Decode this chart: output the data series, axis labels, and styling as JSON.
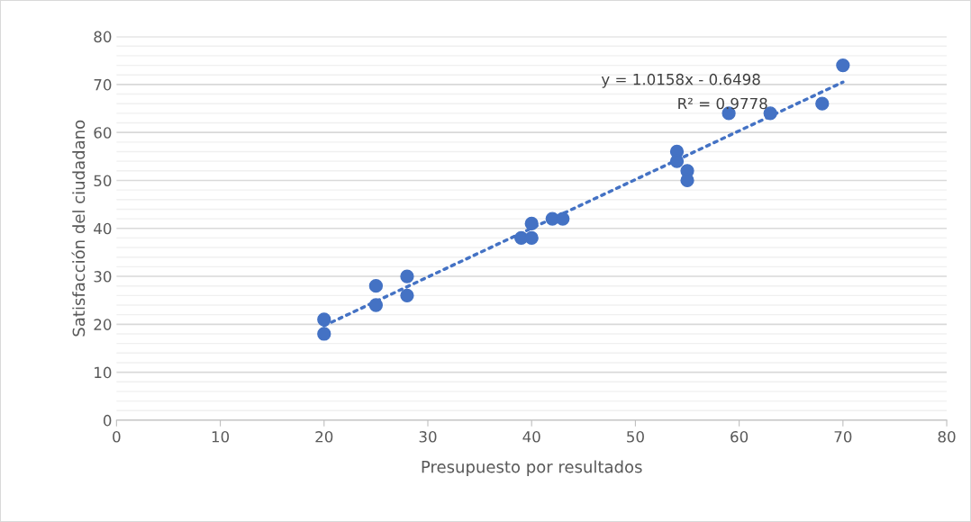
{
  "chart_data": {
    "type": "scatter",
    "xlabel": "Presupuesto por resultados",
    "ylabel": "Satisfacción del ciudadano",
    "xlim": [
      0,
      80
    ],
    "xticks": [
      0,
      10,
      20,
      30,
      40,
      50,
      60,
      70,
      80
    ],
    "ylim": [
      0,
      80
    ],
    "yticks": [
      0,
      {
        "value": 2,
        "label": null
      },
      {
        "value": 4,
        "label": null
      },
      {
        "value": 6,
        "label": null
      },
      {
        "value": 8,
        "label": null
      },
      10,
      {
        "value": 12,
        "label": null
      },
      {
        "value": 14,
        "label": null
      },
      {
        "value": 16,
        "label": null
      },
      {
        "value": 18,
        "label": null
      },
      20,
      {
        "value": 22,
        "label": null
      },
      {
        "value": 24,
        "label": null
      },
      {
        "value": 26,
        "label": null
      },
      {
        "value": 28,
        "label": null
      },
      30,
      {
        "value": 32,
        "label": null
      },
      {
        "value": 34,
        "label": null
      },
      {
        "value": 36,
        "label": null
      },
      {
        "value": 38,
        "label": null
      },
      40,
      {
        "value": 42,
        "label": null
      },
      {
        "value": 44,
        "label": null
      },
      {
        "value": 46,
        "label": null
      },
      {
        "value": 48,
        "label": null
      },
      50,
      {
        "value": 52,
        "label": null
      },
      {
        "value": 54,
        "label": null
      },
      {
        "value": 56,
        "label": null
      },
      {
        "value": 58,
        "label": null
      },
      60,
      {
        "value": 62,
        "label": null
      },
      {
        "value": 64,
        "label": null
      },
      {
        "value": 66,
        "label": null
      },
      {
        "value": 68,
        "label": null
      },
      70,
      {
        "value": 72,
        "label": null
      },
      {
        "value": 74,
        "label": null
      },
      {
        "value": 76,
        "label": null
      },
      {
        "value": 78,
        "label": null
      },
      80
    ],
    "grid": "y",
    "marker": "circle",
    "series": [
      {
        "color": "#4472c4",
        "x": [
          20,
          20,
          25,
          25,
          28,
          28,
          39,
          40,
          40,
          42,
          43,
          54,
          54,
          55,
          55,
          59,
          63,
          68,
          70
        ],
        "values": [
          21,
          18,
          28,
          24,
          30,
          26,
          38,
          38,
          41,
          42,
          42,
          56,
          54,
          52,
          50,
          64,
          64,
          66,
          74
        ]
      },
      {
        "type": "line",
        "color": "#4472c4",
        "line_style": "dotted",
        "marker": "none",
        "x": [
          20,
          70
        ],
        "values": [
          19.7,
          70.5
        ]
      }
    ],
    "annotations": [
      "y = 1.0158x - 0.6498",
      "R² = 0.9778"
    ]
  }
}
